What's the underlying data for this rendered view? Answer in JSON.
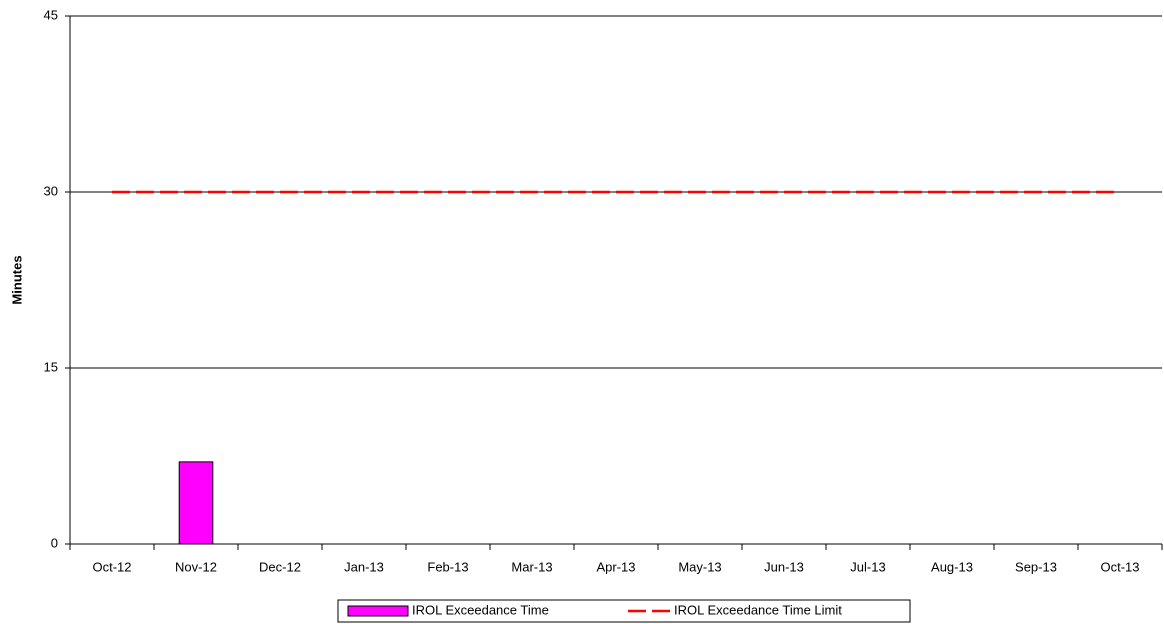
{
  "chart_data": {
    "type": "bar",
    "y_label": "Minutes",
    "categories": [
      "Oct-12",
      "Nov-12",
      "Dec-12",
      "Jan-13",
      "Feb-13",
      "Mar-13",
      "Apr-13",
      "May-13",
      "Jun-13",
      "Jul-13",
      "Aug-13",
      "Sep-13",
      "Oct-13"
    ],
    "series": [
      {
        "name": "IROL Exceedance Time",
        "type": "bar",
        "color": "#ff00ff",
        "values": [
          0,
          7,
          0,
          0,
          0,
          0,
          0,
          0,
          0,
          0,
          0,
          0,
          0
        ]
      },
      {
        "name": "IROL Exceedance Time Limit",
        "type": "line",
        "color": "#ff0000",
        "values": [
          30,
          30,
          30,
          30,
          30,
          30,
          30,
          30,
          30,
          30,
          30,
          30,
          30
        ]
      }
    ],
    "ylim": [
      0,
      45
    ],
    "yticks": [
      0,
      15,
      30,
      45
    ],
    "grid": true,
    "legend": "bottom"
  }
}
